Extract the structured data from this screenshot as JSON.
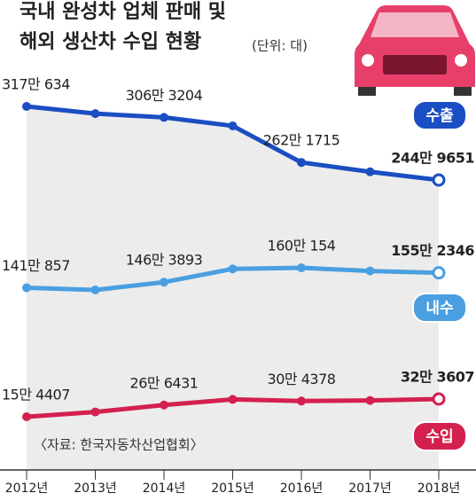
{
  "chart_data": {
    "type": "line",
    "title": "국내 완성차 업체 판매 및",
    "title2": "해외 생산차 수입 현황",
    "unit": "(단위: 대)",
    "source": "〈자료: 한국자동차산업협회〉",
    "categories": [
      "2012년",
      "2013년",
      "2014년",
      "2015년",
      "2016년",
      "2017년",
      "2018년"
    ],
    "series": [
      {
        "name": "수출",
        "color": "#1a4ec2",
        "values": [
          3170634,
          3100000,
          3063204,
          2980000,
          2621715,
          2530000,
          2449651
        ],
        "value_labels": [
          "317만 634",
          null,
          "306만 3204",
          null,
          "262만 1715",
          null,
          "244만 9651"
        ]
      },
      {
        "name": "내수",
        "color": "#4a9fe0",
        "values": [
          1410857,
          1390000,
          1463893,
          1590000,
          1600154,
          1570000,
          1552346
        ],
        "value_labels": [
          "141만 857",
          null,
          "146만 3893",
          null,
          "160만 154",
          null,
          "155만 2346"
        ]
      },
      {
        "name": "수입",
        "color": "#d4204f",
        "values": [
          154407,
          200000,
          266431,
          320000,
          304378,
          310000,
          323607
        ],
        "value_labels": [
          "15만 4407",
          null,
          "26만 6431",
          null,
          "30만 4378",
          null,
          "32만 3607"
        ]
      }
    ]
  }
}
